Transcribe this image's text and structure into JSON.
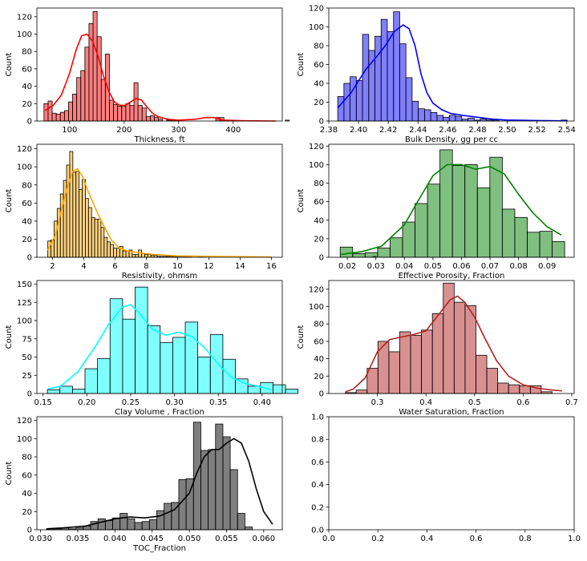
{
  "chart_data": [
    {
      "type": "bar",
      "title": "",
      "xlabel": "Thickness, ft",
      "ylabel": "Count",
      "color": "#ff0000",
      "xlim": [
        40,
        490
      ],
      "ylim": [
        0,
        130
      ],
      "xticks": [
        100,
        200,
        300,
        400
      ],
      "yticks": [
        0,
        20,
        40,
        60,
        80,
        100,
        120
      ],
      "bin_start": 53,
      "bin_width": 7.5,
      "counts": [
        20,
        23,
        9,
        8,
        10,
        12,
        22,
        31,
        50,
        58,
        85,
        112,
        126,
        97,
        48,
        77,
        24,
        19,
        17,
        17,
        20,
        18,
        44,
        18,
        15,
        5,
        6,
        4,
        2,
        0,
        1,
        1,
        1,
        0,
        0,
        0,
        0,
        0,
        0,
        0,
        0,
        0,
        4,
        4,
        1,
        1,
        1,
        0,
        0,
        0,
        0,
        0,
        0,
        0,
        0,
        0,
        0,
        0,
        0,
        1
      ],
      "kde": [
        [
          55,
          12
        ],
        [
          70,
          18
        ],
        [
          85,
          30
        ],
        [
          100,
          55
        ],
        [
          112,
          82
        ],
        [
          122,
          98
        ],
        [
          132,
          100
        ],
        [
          142,
          92
        ],
        [
          152,
          75
        ],
        [
          162,
          52
        ],
        [
          172,
          34
        ],
        [
          182,
          22
        ],
        [
          192,
          18
        ],
        [
          202,
          18
        ],
        [
          212,
          22
        ],
        [
          222,
          26
        ],
        [
          232,
          24
        ],
        [
          242,
          16
        ],
        [
          252,
          9
        ],
        [
          262,
          5
        ],
        [
          280,
          2
        ],
        [
          300,
          1
        ],
        [
          330,
          2
        ],
        [
          350,
          4
        ],
        [
          365,
          4
        ],
        [
          380,
          1
        ],
        [
          420,
          0.3
        ],
        [
          478,
          0
        ]
      ]
    },
    {
      "type": "bar",
      "title": "",
      "xlabel": "Bulk Density, gg per cc",
      "ylabel": "Count",
      "color": "#0000ff",
      "xlim": [
        2.38,
        2.545
      ],
      "ylim": [
        0,
        120
      ],
      "xticks": [
        2.38,
        2.4,
        2.42,
        2.44,
        2.46,
        2.48,
        2.5,
        2.52,
        2.54
      ],
      "xtick_labels": [
        "2.38",
        "2.40",
        "2.42",
        "2.44",
        "2.46",
        "2.48",
        "2.50",
        "2.52",
        "2.54"
      ],
      "yticks": [
        0,
        20,
        40,
        60,
        80,
        100,
        120
      ],
      "bin_start": 2.386,
      "bin_width": 0.00417,
      "counts": [
        26,
        40,
        47,
        43,
        92,
        75,
        90,
        108,
        95,
        116,
        82,
        46,
        21,
        13,
        12,
        9,
        6,
        4,
        6,
        5,
        2,
        3,
        1,
        2,
        1,
        1,
        0,
        0,
        0,
        0,
        0,
        0,
        0,
        0,
        0,
        0,
        1
      ],
      "kde": [
        [
          2.386,
          14
        ],
        [
          2.395,
          30
        ],
        [
          2.405,
          55
        ],
        [
          2.412,
          68
        ],
        [
          2.418,
          80
        ],
        [
          2.424,
          95
        ],
        [
          2.43,
          102
        ],
        [
          2.434,
          98
        ],
        [
          2.438,
          80
        ],
        [
          2.442,
          50
        ],
        [
          2.446,
          30
        ],
        [
          2.45,
          19
        ],
        [
          2.456,
          12
        ],
        [
          2.462,
          8
        ],
        [
          2.47,
          6
        ],
        [
          2.48,
          4
        ],
        [
          2.49,
          2
        ],
        [
          2.5,
          1
        ],
        [
          2.52,
          0.5
        ],
        [
          2.54,
          0.2
        ]
      ]
    },
    {
      "type": "bar",
      "title": "",
      "xlabel": "Resistivity, ohmsm",
      "ylabel": "Count",
      "color": "#ffa500",
      "xlim": [
        1,
        16.7
      ],
      "ylim": [
        0,
        125
      ],
      "xticks": [
        2,
        4,
        6,
        8,
        10,
        12,
        14,
        16
      ],
      "yticks": [
        0,
        20,
        40,
        60,
        80,
        100,
        120
      ],
      "bin_start": 1.7,
      "bin_width": 0.2,
      "counts": [
        18,
        19,
        40,
        54,
        70,
        85,
        102,
        117,
        94,
        95,
        75,
        86,
        65,
        55,
        44,
        42,
        42,
        33,
        22,
        17,
        14,
        10,
        10,
        12,
        7,
        7,
        8,
        3,
        3,
        8,
        4,
        3,
        3,
        2,
        2,
        1,
        1,
        1,
        1,
        1,
        1,
        1,
        1,
        1,
        1,
        1,
        0,
        0,
        1,
        1,
        0,
        0,
        0,
        0,
        0,
        0,
        0,
        0,
        0,
        0,
        0,
        0,
        0,
        0,
        0,
        0,
        0,
        0,
        0,
        0,
        0,
        0,
        0,
        0,
        0,
        0,
        0,
        0,
        0,
        0,
        0,
        0,
        0,
        0,
        0,
        0,
        0,
        0,
        0,
        0,
        0,
        0,
        0,
        0,
        0,
        0,
        0,
        0,
        0,
        0,
        0,
        0,
        0,
        0,
        1
      ],
      "kde": [
        [
          1.7,
          8
        ],
        [
          2.2,
          25
        ],
        [
          2.6,
          55
        ],
        [
          3.0,
          80
        ],
        [
          3.3,
          95
        ],
        [
          3.6,
          98
        ],
        [
          3.9,
          90
        ],
        [
          4.3,
          72
        ],
        [
          4.8,
          52
        ],
        [
          5.3,
          34
        ],
        [
          5.8,
          18
        ],
        [
          6.3,
          10
        ],
        [
          6.8,
          7
        ],
        [
          7.5,
          5
        ],
        [
          8.5,
          3
        ],
        [
          10,
          1.5
        ],
        [
          12,
          1
        ],
        [
          14,
          0.6
        ],
        [
          16,
          0.3
        ]
      ]
    },
    {
      "type": "bar",
      "title": "",
      "xlabel": "Effective Porosity, Fraction",
      "ylabel": "Count",
      "color": "#008000",
      "xlim": [
        0.0135,
        0.0995
      ],
      "ylim": [
        0,
        122
      ],
      "xticks": [
        0.02,
        0.03,
        0.04,
        0.05,
        0.06,
        0.07,
        0.08,
        0.09
      ],
      "xtick_labels": [
        "0.02",
        "0.03",
        "0.04",
        "0.05",
        "0.06",
        "0.07",
        "0.08",
        "0.09"
      ],
      "yticks": [
        0,
        20,
        40,
        60,
        80,
        100,
        120
      ],
      "bin_start": 0.0175,
      "bin_width": 0.00437,
      "counts": [
        11,
        4,
        5,
        10,
        21,
        38,
        58,
        79,
        116,
        99,
        100,
        75,
        108,
        52,
        43,
        27,
        28,
        17
      ],
      "kde": [
        [
          0.0175,
          3
        ],
        [
          0.025,
          6
        ],
        [
          0.032,
          12
        ],
        [
          0.04,
          35
        ],
        [
          0.045,
          62
        ],
        [
          0.05,
          88
        ],
        [
          0.055,
          100
        ],
        [
          0.06,
          100
        ],
        [
          0.065,
          95
        ],
        [
          0.07,
          98
        ],
        [
          0.075,
          90
        ],
        [
          0.08,
          68
        ],
        [
          0.085,
          48
        ],
        [
          0.09,
          33
        ],
        [
          0.095,
          24
        ]
      ]
    },
    {
      "type": "bar",
      "title": "",
      "xlabel": "Clay Volume , Fraction",
      "ylabel": "Count",
      "color": "#00ffff",
      "xlim": [
        0.143,
        0.423
      ],
      "ylim": [
        0,
        155
      ],
      "xticks": [
        0.15,
        0.2,
        0.25,
        0.3,
        0.35,
        0.4
      ],
      "xtick_labels": [
        "0.15",
        "0.20",
        "0.25",
        "0.30",
        "0.35",
        "0.40"
      ],
      "yticks": [
        0,
        25,
        50,
        75,
        100,
        125,
        150
      ],
      "bin_start": 0.155,
      "bin_width": 0.0143,
      "counts": [
        5,
        10,
        6,
        34,
        48,
        130,
        102,
        146,
        93,
        70,
        77,
        98,
        50,
        81,
        47,
        20,
        10,
        15,
        12,
        6
      ],
      "kde": [
        [
          0.155,
          6
        ],
        [
          0.17,
          10
        ],
        [
          0.19,
          30
        ],
        [
          0.21,
          65
        ],
        [
          0.225,
          95
        ],
        [
          0.24,
          118
        ],
        [
          0.25,
          122
        ],
        [
          0.26,
          110
        ],
        [
          0.275,
          88
        ],
        [
          0.29,
          80
        ],
        [
          0.305,
          84
        ],
        [
          0.32,
          78
        ],
        [
          0.335,
          62
        ],
        [
          0.35,
          40
        ],
        [
          0.365,
          22
        ],
        [
          0.38,
          14
        ],
        [
          0.395,
          10
        ],
        [
          0.41,
          5
        ]
      ]
    },
    {
      "type": "bar",
      "title": "",
      "xlabel": "Water Saturation, Fraction",
      "ylabel": "Count",
      "color": "#b22222",
      "xlim": [
        0.2,
        0.705
      ],
      "ylim": [
        0,
        130
      ],
      "xticks": [
        0.3,
        0.4,
        0.5,
        0.6,
        0.7
      ],
      "xtick_labels": [
        "0.3",
        "0.4",
        "0.5",
        "0.6",
        "0.7"
      ],
      "yticks": [
        0,
        20,
        40,
        60,
        80,
        100,
        120
      ],
      "bin_start": 0.234,
      "bin_width": 0.0224,
      "counts": [
        1,
        4,
        29,
        60,
        48,
        71,
        67,
        73,
        92,
        127,
        105,
        101,
        44,
        29,
        12,
        10,
        9,
        9,
        2
      ],
      "kde": [
        [
          0.234,
          2
        ],
        [
          0.25,
          5
        ],
        [
          0.275,
          18
        ],
        [
          0.3,
          48
        ],
        [
          0.325,
          62
        ],
        [
          0.35,
          65
        ],
        [
          0.375,
          68
        ],
        [
          0.4,
          72
        ],
        [
          0.425,
          90
        ],
        [
          0.45,
          108
        ],
        [
          0.465,
          112
        ],
        [
          0.48,
          105
        ],
        [
          0.5,
          88
        ],
        [
          0.52,
          65
        ],
        [
          0.545,
          38
        ],
        [
          0.57,
          20
        ],
        [
          0.6,
          10
        ],
        [
          0.63,
          6
        ],
        [
          0.66,
          4
        ],
        [
          0.68,
          3
        ]
      ]
    },
    {
      "type": "bar",
      "title": "",
      "xlabel": "TOC_Fraction",
      "ylabel": "Count",
      "color": "#000000",
      "xlim": [
        0.0295,
        0.0625
      ],
      "ylim": [
        0,
        124
      ],
      "xticks": [
        0.03,
        0.035,
        0.04,
        0.045,
        0.05,
        0.055,
        0.06
      ],
      "xtick_labels": [
        "0.030",
        "0.035",
        "0.040",
        "0.045",
        "0.050",
        "0.055",
        "0.060"
      ],
      "yticks": [
        0,
        20,
        40,
        60,
        80,
        100,
        120
      ],
      "bin_start": 0.0308,
      "bin_width": 0.000988,
      "counts": [
        1,
        1,
        2,
        1,
        2,
        4,
        9,
        12,
        10,
        13,
        18,
        12,
        8,
        9,
        11,
        21,
        29,
        30,
        55,
        56,
        118,
        87,
        88,
        116,
        102,
        66,
        18,
        3
      ],
      "kde": [
        [
          0.0308,
          1
        ],
        [
          0.033,
          2
        ],
        [
          0.036,
          4
        ],
        [
          0.038,
          8
        ],
        [
          0.04,
          12
        ],
        [
          0.042,
          14
        ],
        [
          0.044,
          13
        ],
        [
          0.046,
          15
        ],
        [
          0.048,
          22
        ],
        [
          0.05,
          40
        ],
        [
          0.051,
          62
        ],
        [
          0.052,
          80
        ],
        [
          0.053,
          88
        ],
        [
          0.054,
          88
        ],
        [
          0.055,
          95
        ],
        [
          0.056,
          100
        ],
        [
          0.057,
          95
        ],
        [
          0.058,
          75
        ],
        [
          0.059,
          45
        ],
        [
          0.06,
          20
        ],
        [
          0.0612,
          6
        ]
      ]
    },
    {
      "type": "table",
      "title": "",
      "xlabel": "",
      "ylabel": "",
      "xlim": [
        0,
        1
      ],
      "ylim": [
        0,
        1
      ],
      "xticks": [
        0.0,
        0.2,
        0.4,
        0.6,
        0.8,
        1.0
      ],
      "xtick_labels": [
        "0.0",
        "0.2",
        "0.4",
        "0.6",
        "0.8",
        "1.0"
      ],
      "yticks": [
        0.0,
        0.2,
        0.4,
        0.6,
        0.8,
        1.0
      ],
      "ytick_labels": [
        "0.0",
        "0.2",
        "0.4",
        "0.6",
        "0.8",
        "1.0"
      ]
    }
  ]
}
